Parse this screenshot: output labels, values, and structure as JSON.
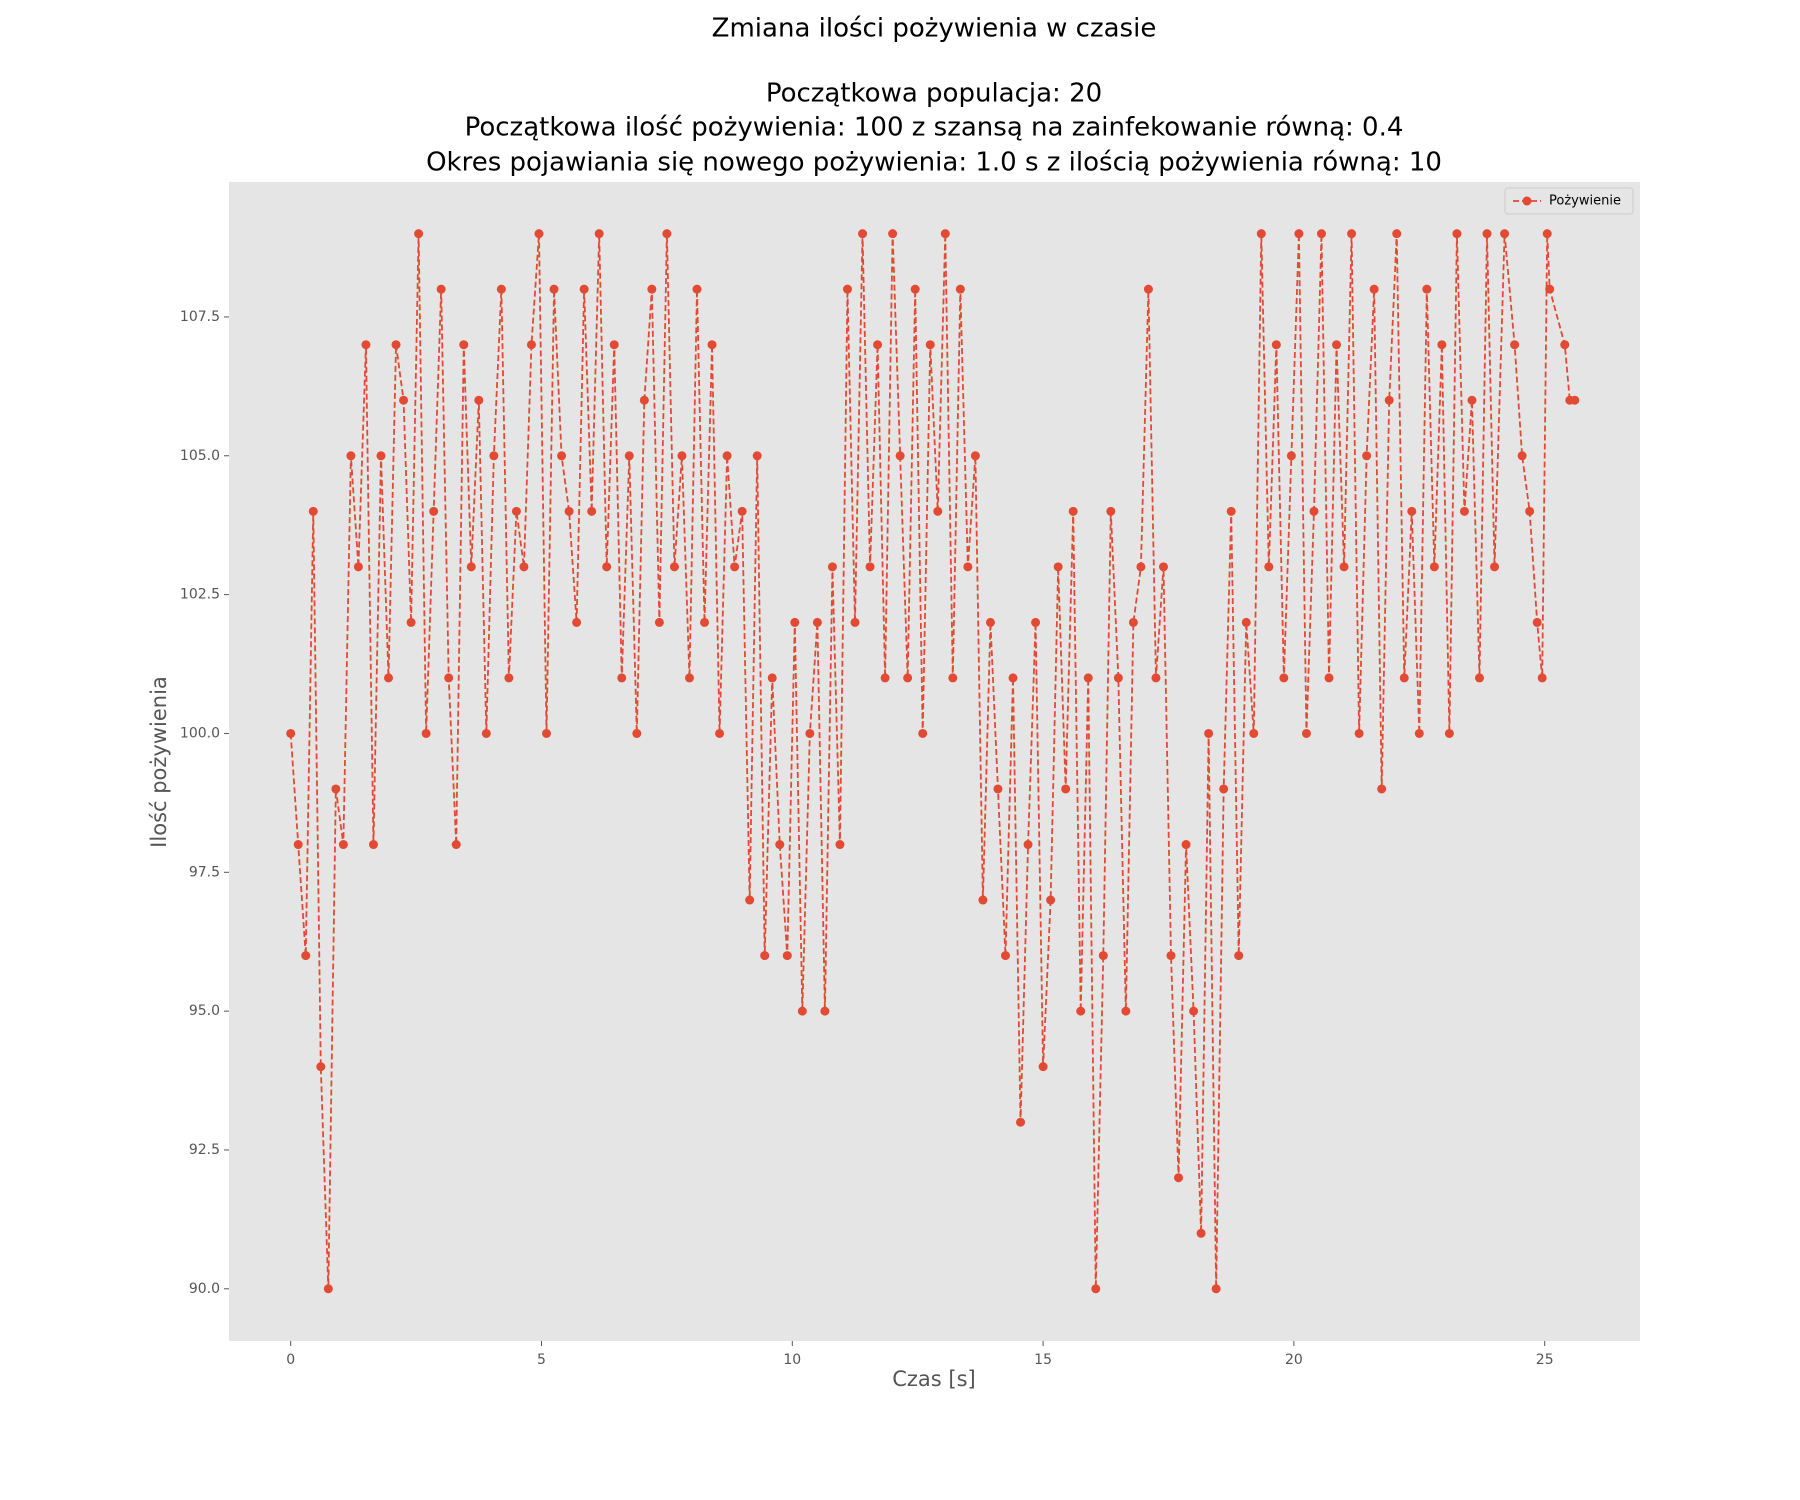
{
  "chart_data": {
    "type": "line",
    "title": "Zmiana ilości pożywienia w czasie",
    "subtitle": [
      "Początkowa populacja: 20",
      "Początkowa ilość pożywienia: 100 z szansą na zainfekowanie równą: 0.4",
      "Okres pojawiania się nowego pożywienia: 1.0 s z ilością pożywienia równą: 10"
    ],
    "x_label": "Czas [s]",
    "y_label": "Ilość pożywienia",
    "x": [
      0,
      0.15,
      0.3,
      0.45,
      0.6,
      0.75,
      0.9,
      1.05,
      1.2,
      1.35,
      1.5,
      1.65,
      1.8,
      1.95,
      2.1,
      2.25,
      2.4,
      2.55,
      2.7,
      2.85,
      3,
      3.15,
      3.3,
      3.45,
      3.6,
      3.75,
      3.9,
      4.05,
      4.2,
      4.35,
      4.5,
      4.65,
      4.8,
      4.95,
      5.1,
      5.25,
      5.4,
      5.55,
      5.7,
      5.85,
      6,
      6.15,
      6.3,
      6.45,
      6.6,
      6.75,
      6.9,
      7.05,
      7.2,
      7.35,
      7.5,
      7.65,
      7.8,
      7.95,
      8.1,
      8.25,
      8.4,
      8.55,
      8.7,
      8.85,
      9,
      9.15,
      9.3,
      9.45,
      9.6,
      9.75,
      9.9,
      10.05,
      10.2,
      10.35,
      10.5,
      10.65,
      10.8,
      10.95,
      11.1,
      11.25,
      11.4,
      11.55,
      11.7,
      11.85,
      12,
      12.15,
      12.3,
      12.45,
      12.6,
      12.75,
      12.9,
      13.05,
      13.2,
      13.35,
      13.5,
      13.65,
      13.8,
      13.95,
      14.1,
      14.25,
      14.4,
      14.55,
      14.7,
      14.85,
      15,
      15.15,
      15.3,
      15.45,
      15.6,
      15.75,
      15.9,
      16.05,
      16.2,
      16.35,
      16.5,
      16.65,
      16.8,
      16.95,
      17.1,
      17.25,
      17.4,
      17.55,
      17.7,
      17.85,
      18,
      18.15,
      18.3,
      18.45,
      18.6,
      18.75,
      18.9,
      19.05,
      19.2,
      19.35,
      19.5,
      19.65,
      19.8,
      19.95,
      20.1,
      20.25,
      20.4,
      20.55,
      20.7,
      20.85,
      21,
      21.15,
      21.3,
      21.45,
      21.6,
      21.75,
      21.9,
      22.05,
      22.2,
      22.35,
      22.5,
      22.65,
      22.8,
      22.95,
      23.1,
      23.25,
      23.4,
      23.55,
      23.7,
      23.85,
      24,
      24.2,
      24.4,
      24.55,
      24.7,
      24.85,
      24.95,
      25.05,
      25.1,
      25.4,
      25.5,
      25.6
    ],
    "series": [
      {
        "name": "Pożywienie",
        "color": "#e24a33",
        "values": [
          100,
          98,
          96,
          104,
          94,
          90,
          99,
          98,
          105,
          103,
          107,
          98,
          105,
          101,
          107,
          106,
          102,
          109,
          100,
          104,
          108,
          101,
          98,
          107,
          103,
          106,
          100,
          105,
          108,
          101,
          104,
          103,
          107,
          109,
          100,
          108,
          105,
          104,
          102,
          108,
          104,
          109,
          103,
          107,
          101,
          105,
          100,
          106,
          108,
          102,
          109,
          103,
          105,
          101,
          108,
          102,
          107,
          100,
          105,
          103,
          104,
          97,
          105,
          96,
          101,
          98,
          96,
          102,
          95,
          100,
          102,
          95,
          103,
          98,
          108,
          102,
          109,
          103,
          107,
          101,
          109,
          105,
          101,
          108,
          100,
          107,
          104,
          109,
          101,
          108,
          103,
          105,
          97,
          102,
          99,
          96,
          101,
          93,
          98,
          102,
          94,
          97,
          103,
          99,
          104,
          95,
          101,
          90,
          96,
          104,
          101,
          95,
          102,
          103,
          108,
          101,
          103,
          96,
          92,
          98,
          95,
          91,
          100,
          90,
          99,
          104,
          96,
          102,
          100,
          109,
          103,
          107,
          101,
          105,
          109,
          100,
          104,
          109,
          101,
          107,
          103,
          109,
          100,
          105,
          108,
          99,
          106,
          109,
          101,
          104,
          100,
          108,
          103,
          107,
          100,
          109,
          104,
          106,
          101,
          109,
          103,
          109,
          107,
          105,
          104,
          102,
          101,
          109,
          108,
          107,
          106,
          106
        ]
      }
    ],
    "xlim": [
      -1.23,
      26.9
    ],
    "ylim": [
      89.06,
      109.93
    ],
    "xticks": [
      0,
      5,
      10,
      15,
      20,
      25
    ],
    "yticks": [
      {
        "value": 90,
        "label": "90.0"
      },
      {
        "value": 92.5,
        "label": "92.5"
      },
      {
        "value": 95,
        "label": "95.0"
      },
      {
        "value": 97.5,
        "label": "97.5"
      },
      {
        "value": 100,
        "label": "100.0"
      },
      {
        "value": 102.5,
        "label": "102.5"
      },
      {
        "value": 105,
        "label": "105.0"
      },
      {
        "value": 107.5,
        "label": "107.5"
      }
    ],
    "grid": false,
    "legend": "upper right",
    "background": "#e5e5e5"
  }
}
